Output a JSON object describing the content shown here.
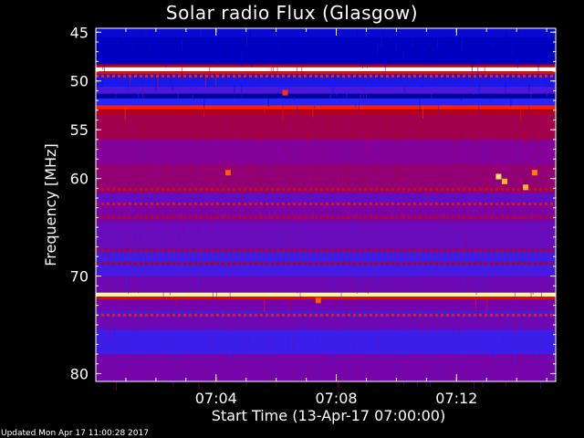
{
  "chart_data": {
    "type": "heatmap",
    "title": "Solar radio Flux (Glasgow)",
    "xlabel": "Start Time (13-Apr-17 07:00:00)",
    "ylabel": "Frequency [MHz]",
    "x_unit": "minutes after 07:00:00",
    "xlim": [
      0,
      15.3
    ],
    "ylim": [
      44.6,
      80.8
    ],
    "x_ticks": [
      {
        "value": 4,
        "label": "07:04"
      },
      {
        "value": 8,
        "label": "07:08"
      },
      {
        "value": 12,
        "label": "07:12"
      }
    ],
    "y_ticks": [
      {
        "value": 45,
        "label": "45"
      },
      {
        "value": 50,
        "label": "50"
      },
      {
        "value": 55,
        "label": "55"
      },
      {
        "value": 60,
        "label": "60"
      },
      {
        "value": 70,
        "label": "70"
      },
      {
        "value": 80,
        "label": "80"
      }
    ],
    "colormap": [
      "#000000",
      "#0000c8",
      "#2828ff",
      "#8000a0",
      "#c00000",
      "#ff2000",
      "#ff8000",
      "#ffff80",
      "#ffffff"
    ],
    "frequency_bands": [
      {
        "from": 44.6,
        "to": 45.5,
        "level": 0.15
      },
      {
        "from": 45.5,
        "to": 48.3,
        "level": 0.12
      },
      {
        "from": 48.3,
        "to": 48.6,
        "level": 0.5
      },
      {
        "from": 48.6,
        "to": 49.0,
        "level": 1.0
      },
      {
        "from": 49.0,
        "to": 49.3,
        "level": 0.55
      },
      {
        "from": 49.3,
        "to": 50.6,
        "level": 0.2
      },
      {
        "from": 50.6,
        "to": 51.3,
        "level": 0.3
      },
      {
        "from": 51.3,
        "to": 51.8,
        "level": 0.1
      },
      {
        "from": 51.8,
        "to": 52.5,
        "level": 0.24
      },
      {
        "from": 52.5,
        "to": 52.9,
        "level": 0.62
      },
      {
        "from": 52.9,
        "to": 53.4,
        "level": 0.48
      },
      {
        "from": 53.4,
        "to": 56.0,
        "level": 0.44
      },
      {
        "from": 56.0,
        "to": 58.5,
        "level": 0.38
      },
      {
        "from": 58.5,
        "to": 61.5,
        "level": 0.41
      },
      {
        "from": 61.5,
        "to": 62.5,
        "level": 0.33
      },
      {
        "from": 62.5,
        "to": 64.5,
        "level": 0.37
      },
      {
        "from": 64.5,
        "to": 67.5,
        "level": 0.34
      },
      {
        "from": 67.5,
        "to": 70.0,
        "level": 0.29
      },
      {
        "from": 70.0,
        "to": 71.7,
        "level": 0.35
      },
      {
        "from": 71.7,
        "to": 72.1,
        "level": 0.9
      },
      {
        "from": 72.1,
        "to": 72.4,
        "level": 0.55
      },
      {
        "from": 72.4,
        "to": 73.5,
        "level": 0.36
      },
      {
        "from": 73.5,
        "to": 74.2,
        "level": 0.3
      },
      {
        "from": 74.2,
        "to": 75.5,
        "level": 0.35
      },
      {
        "from": 75.5,
        "to": 78.0,
        "level": 0.28
      },
      {
        "from": 78.0,
        "to": 80.8,
        "level": 0.36
      }
    ],
    "dashed_lines": [
      {
        "freq": 49.5,
        "level": 0.62
      },
      {
        "freq": 61.1,
        "level": 0.54
      },
      {
        "freq": 62.6,
        "level": 0.58
      },
      {
        "freq": 64.0,
        "level": 0.52
      },
      {
        "freq": 67.4,
        "level": 0.52
      },
      {
        "freq": 68.7,
        "level": 0.5
      },
      {
        "freq": 74.0,
        "level": 0.6
      }
    ],
    "bursts": [
      {
        "time": 13.4,
        "freq": 59.8,
        "level": 0.85
      },
      {
        "time": 13.6,
        "freq": 60.3,
        "level": 0.8
      },
      {
        "time": 14.3,
        "freq": 60.9,
        "level": 0.8
      },
      {
        "time": 14.6,
        "freq": 59.4,
        "level": 0.75
      },
      {
        "time": 4.4,
        "freq": 59.4,
        "level": 0.7
      },
      {
        "time": 6.3,
        "freq": 51.2,
        "level": 0.65
      },
      {
        "time": 7.4,
        "freq": 72.5,
        "level": 0.7
      }
    ]
  },
  "footer": "Updated Mon Apr 17 11:00:28 2017"
}
